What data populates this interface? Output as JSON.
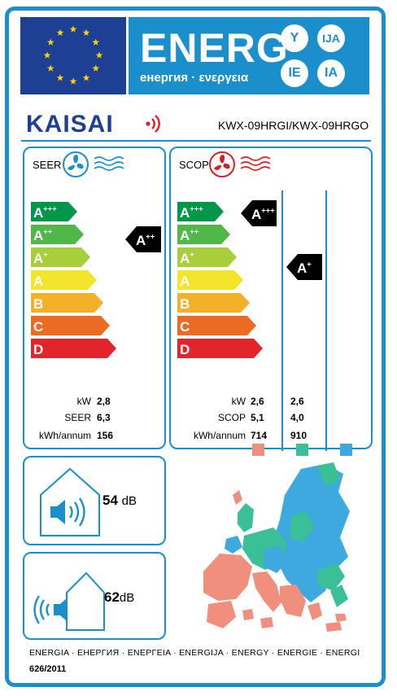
{
  "header": {
    "title": "ENERG",
    "subtitle": "енергия · ενεργεια",
    "lang_codes": [
      "Y",
      "IJA",
      "IE",
      "IA"
    ]
  },
  "brand": {
    "name": "KAISAI",
    "model": "KWX-09HRGI/KWX-09HRGO"
  },
  "cooling": {
    "label": "SEER",
    "scale": [
      "A+++",
      "A++",
      "A+",
      "A",
      "B",
      "C",
      "D"
    ],
    "rating": "A++",
    "rows": [
      {
        "label": "kW",
        "value": "2,8"
      },
      {
        "label": "SEER",
        "value": "6,3"
      },
      {
        "label": "kWh/annum",
        "value": "156"
      }
    ]
  },
  "heating": {
    "label": "SCOP",
    "scale": [
      "A+++",
      "A++",
      "A+",
      "A",
      "B",
      "C",
      "D"
    ],
    "rating_average": "A+++",
    "rating_colder": "A+",
    "rows": [
      {
        "label": "kW",
        "average": "2,6",
        "colder": "2,6"
      },
      {
        "label": "SCOP",
        "average": "5,1",
        "colder": "4,0"
      },
      {
        "label": "kWh/annum",
        "average": "714",
        "colder": "910"
      }
    ],
    "zone_colors": [
      "#f08f7e",
      "#3bbf97",
      "#3ea9df"
    ]
  },
  "noise": {
    "indoor": {
      "value": "54",
      "unit": "dB"
    },
    "outdoor": {
      "value": "62",
      "unit": "dB"
    }
  },
  "colors": {
    "primary": "#1a8fcc",
    "eu_blue": "#1d3f94",
    "scale": [
      "#00974a",
      "#4fb848",
      "#a8cf3b",
      "#f2e52c",
      "#f3b12a",
      "#ec6b24",
      "#e3242b"
    ]
  },
  "footer": {
    "languages": "ENERGIA · ЕНЕРГИЯ · ΕΝΕΡΓΕΙΑ · ENERGIJA · ENERGY · ENERGIE · ENERGI",
    "regulation": "626/2011"
  }
}
